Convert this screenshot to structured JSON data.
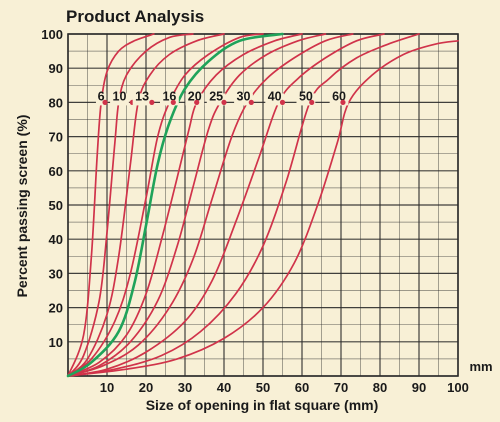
{
  "chart_data": {
    "type": "line",
    "title": "Product Analysis",
    "xlabel": "Size of opening in flat square (mm)",
    "ylabel": "Percent passing screen (%)",
    "x_unit_label": "mm",
    "xlim": [
      0,
      100
    ],
    "ylim": [
      0,
      100
    ],
    "x_ticks": [
      10,
      20,
      30,
      40,
      50,
      60,
      70,
      80,
      90,
      100
    ],
    "y_ticks": [
      10,
      20,
      30,
      40,
      50,
      60,
      70,
      80,
      90,
      100
    ],
    "x_minor_step": 5,
    "y_minor_step": 5,
    "grid": true,
    "grid_color": "#2b2b2b",
    "background_color": "#f8f0d6",
    "curve_color": "#d0334a",
    "highlight_color": "#1fa35a",
    "marker_color": "#d0334a",
    "series": [
      {
        "name": "6",
        "highlight": false,
        "points": [
          [
            0,
            0
          ],
          [
            4,
            12
          ],
          [
            6,
            35
          ],
          [
            7.5,
            65
          ],
          [
            8.5,
            80
          ],
          [
            10,
            89
          ],
          [
            13,
            95
          ],
          [
            17,
            98
          ],
          [
            22,
            100
          ]
        ]
      },
      {
        "name": "10",
        "highlight": false,
        "points": [
          [
            0,
            0
          ],
          [
            4,
            6
          ],
          [
            8,
            22
          ],
          [
            10,
            42
          ],
          [
            12,
            68
          ],
          [
            13,
            80
          ],
          [
            15,
            88
          ],
          [
            20,
            95
          ],
          [
            26,
            99
          ],
          [
            32,
            100
          ]
        ]
      },
      {
        "name": "13",
        "highlight": false,
        "points": [
          [
            0,
            0
          ],
          [
            5,
            5
          ],
          [
            10,
            18
          ],
          [
            13,
            35
          ],
          [
            16,
            62
          ],
          [
            18,
            80
          ],
          [
            21,
            88
          ],
          [
            26,
            94
          ],
          [
            33,
            98
          ],
          [
            40,
            100
          ]
        ]
      },
      {
        "name": "16",
        "highlight": false,
        "points": [
          [
            0,
            0
          ],
          [
            6,
            5
          ],
          [
            12,
            16
          ],
          [
            16,
            30
          ],
          [
            20,
            52
          ],
          [
            23,
            70
          ],
          [
            26,
            80
          ],
          [
            30,
            88
          ],
          [
            36,
            94
          ],
          [
            44,
            99
          ],
          [
            50,
            100
          ]
        ]
      },
      {
        "name": "20",
        "highlight": true,
        "points": [
          [
            0,
            0
          ],
          [
            6,
            4
          ],
          [
            13,
            13
          ],
          [
            17,
            27
          ],
          [
            20,
            44
          ],
          [
            23,
            62
          ],
          [
            26,
            74
          ],
          [
            30,
            84
          ],
          [
            36,
            92
          ],
          [
            44,
            98
          ],
          [
            55,
            100
          ]
        ]
      },
      {
        "name": "20",
        "highlight": false,
        "points": [
          [
            0,
            0
          ],
          [
            8,
            4
          ],
          [
            15,
            12
          ],
          [
            20,
            24
          ],
          [
            24,
            40
          ],
          [
            28,
            58
          ],
          [
            31,
            72
          ],
          [
            33,
            80
          ],
          [
            38,
            88
          ],
          [
            45,
            94
          ],
          [
            53,
            98
          ],
          [
            60,
            100
          ]
        ]
      },
      {
        "name": "25",
        "highlight": false,
        "points": [
          [
            0,
            0
          ],
          [
            8,
            3
          ],
          [
            16,
            10
          ],
          [
            23,
            22
          ],
          [
            28,
            38
          ],
          [
            32,
            55
          ],
          [
            36,
            72
          ],
          [
            39,
            80
          ],
          [
            44,
            88
          ],
          [
            51,
            94
          ],
          [
            59,
            98
          ],
          [
            66,
            100
          ]
        ]
      },
      {
        "name": "30",
        "highlight": false,
        "points": [
          [
            0,
            0
          ],
          [
            9,
            3
          ],
          [
            18,
            9
          ],
          [
            26,
            20
          ],
          [
            32,
            34
          ],
          [
            37,
            52
          ],
          [
            42,
            70
          ],
          [
            46,
            80
          ],
          [
            51,
            87
          ],
          [
            58,
            93
          ],
          [
            66,
            98
          ],
          [
            73,
            100
          ]
        ]
      },
      {
        "name": "40",
        "highlight": false,
        "points": [
          [
            0,
            0
          ],
          [
            10,
            2
          ],
          [
            20,
            7
          ],
          [
            30,
            16
          ],
          [
            37,
            28
          ],
          [
            43,
            45
          ],
          [
            49,
            64
          ],
          [
            54,
            80
          ],
          [
            59,
            87
          ],
          [
            66,
            93
          ],
          [
            74,
            98
          ],
          [
            81,
            100
          ]
        ]
      },
      {
        "name": "50",
        "highlight": false,
        "points": [
          [
            0,
            0
          ],
          [
            12,
            2
          ],
          [
            24,
            6
          ],
          [
            34,
            13
          ],
          [
            43,
            24
          ],
          [
            50,
            38
          ],
          [
            56,
            57
          ],
          [
            62,
            80
          ],
          [
            67,
            87
          ],
          [
            74,
            93
          ],
          [
            82,
            97
          ],
          [
            90,
            100
          ]
        ]
      },
      {
        "name": "60",
        "highlight": false,
        "points": [
          [
            0,
            0
          ],
          [
            15,
            2
          ],
          [
            28,
            5
          ],
          [
            40,
            11
          ],
          [
            50,
            20
          ],
          [
            58,
            33
          ],
          [
            64,
            50
          ],
          [
            69,
            68
          ],
          [
            72,
            80
          ],
          [
            78,
            88
          ],
          [
            86,
            94
          ],
          [
            94,
            97
          ],
          [
            100,
            98
          ]
        ]
      }
    ],
    "labels_at_80": [
      {
        "text": "6",
        "label_x": 8.5,
        "marker_x": 9.5
      },
      {
        "text": "10",
        "label_x": 13.2,
        "marker_x": 16.5
      },
      {
        "text": "13",
        "label_x": 19.0,
        "marker_x": 21.5
      },
      {
        "text": "16",
        "label_x": 26.0,
        "marker_x": 27.0
      },
      {
        "text": "20",
        "label_x": 32.5,
        "marker_x": 33.0
      },
      {
        "text": "25",
        "label_x": 38.0,
        "marker_x": 40.0
      },
      {
        "text": "30",
        "label_x": 45.0,
        "marker_x": 47.0
      },
      {
        "text": "40",
        "label_x": 53.0,
        "marker_x": 55.0
      },
      {
        "text": "50",
        "label_x": 61.0,
        "marker_x": 62.5
      },
      {
        "text": "60",
        "label_x": 69.5,
        "marker_x": 70.5
      }
    ]
  }
}
